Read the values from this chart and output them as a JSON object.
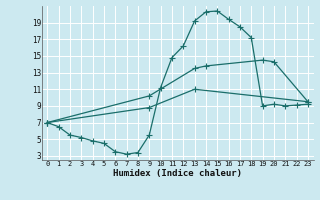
{
  "xlabel": "Humidex (Indice chaleur)",
  "bg_color": "#cce9f0",
  "grid_color": "#ffffff",
  "line_color": "#1a6e6a",
  "xlim": [
    -0.5,
    23.5
  ],
  "ylim": [
    2.5,
    21
  ],
  "xticks": [
    0,
    1,
    2,
    3,
    4,
    5,
    6,
    7,
    8,
    9,
    10,
    11,
    12,
    13,
    14,
    15,
    16,
    17,
    18,
    19,
    20,
    21,
    22,
    23
  ],
  "yticks": [
    3,
    5,
    7,
    9,
    11,
    13,
    15,
    17,
    19
  ],
  "line1_x": [
    0,
    1,
    2,
    3,
    4,
    5,
    6,
    7,
    8,
    9,
    10,
    11,
    12,
    13,
    14,
    15,
    16,
    17,
    18,
    19,
    20,
    21,
    22,
    23
  ],
  "line1_y": [
    7.0,
    6.5,
    5.5,
    5.2,
    4.8,
    4.5,
    3.5,
    3.2,
    3.4,
    5.5,
    11.2,
    14.8,
    16.2,
    19.2,
    20.3,
    20.4,
    19.4,
    18.5,
    17.2,
    9.0,
    9.2,
    9.0,
    9.1,
    9.2
  ],
  "line2_x": [
    0,
    9,
    13,
    14,
    19,
    20,
    23
  ],
  "line2_y": [
    7.0,
    10.2,
    13.5,
    13.8,
    14.5,
    14.3,
    9.5
  ],
  "line3_x": [
    0,
    9,
    13,
    23
  ],
  "line3_y": [
    7.0,
    8.8,
    11.0,
    9.5
  ]
}
